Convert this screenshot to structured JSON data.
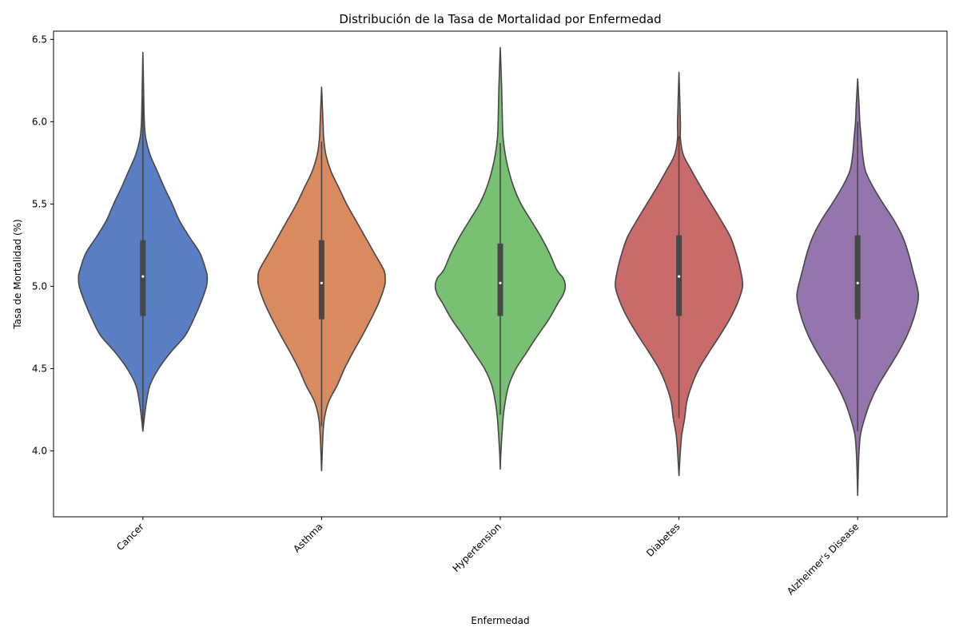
{
  "chart_data": {
    "type": "violin",
    "title": "Distribución de la Tasa de Mortalidad por Enfermedad",
    "xlabel": "Enfermedad",
    "ylabel": "Tasa de Mortalidad (%)",
    "ylim": [
      3.6,
      6.55
    ],
    "yticks": [
      "4.0",
      "4.5",
      "5.0",
      "5.5",
      "6.0",
      "6.5"
    ],
    "grid": false,
    "categories": [
      "Cancer",
      "Asthma",
      "Hypertension",
      "Diabetes",
      "Alzheimer's Disease"
    ],
    "series": [
      {
        "category": "Cancer",
        "color": "#5a7ec4",
        "min": 4.12,
        "max": 6.42,
        "q1": 4.82,
        "median": 5.06,
        "q3": 5.28,
        "whisker_low": 4.12,
        "whisker_high": 6.15,
        "profile": [
          [
            4.12,
            0.0
          ],
          [
            4.2,
            0.02
          ],
          [
            4.3,
            0.05
          ],
          [
            4.4,
            0.1
          ],
          [
            4.5,
            0.22
          ],
          [
            4.6,
            0.39
          ],
          [
            4.7,
            0.59
          ],
          [
            4.8,
            0.71
          ],
          [
            4.9,
            0.81
          ],
          [
            5.0,
            0.89
          ],
          [
            5.06,
            0.9
          ],
          [
            5.1,
            0.88
          ],
          [
            5.2,
            0.8
          ],
          [
            5.3,
            0.65
          ],
          [
            5.4,
            0.51
          ],
          [
            5.5,
            0.41
          ],
          [
            5.6,
            0.3
          ],
          [
            5.7,
            0.2
          ],
          [
            5.8,
            0.1
          ],
          [
            5.9,
            0.04
          ],
          [
            6.0,
            0.02
          ],
          [
            6.2,
            0.01
          ],
          [
            6.42,
            0.0
          ]
        ]
      },
      {
        "category": "Asthma",
        "color": "#d98a5e",
        "min": 3.88,
        "max": 6.21,
        "q1": 4.8,
        "median": 5.02,
        "q3": 5.28,
        "whisker_low": 4.15,
        "whisker_high": 5.88,
        "profile": [
          [
            3.88,
            0.0
          ],
          [
            4.0,
            0.01
          ],
          [
            4.1,
            0.02
          ],
          [
            4.2,
            0.04
          ],
          [
            4.3,
            0.1
          ],
          [
            4.4,
            0.22
          ],
          [
            4.5,
            0.32
          ],
          [
            4.6,
            0.44
          ],
          [
            4.7,
            0.57
          ],
          [
            4.8,
            0.69
          ],
          [
            4.9,
            0.8
          ],
          [
            5.0,
            0.88
          ],
          [
            5.05,
            0.89
          ],
          [
            5.1,
            0.87
          ],
          [
            5.2,
            0.74
          ],
          [
            5.3,
            0.61
          ],
          [
            5.4,
            0.48
          ],
          [
            5.5,
            0.35
          ],
          [
            5.6,
            0.24
          ],
          [
            5.7,
            0.13
          ],
          [
            5.8,
            0.06
          ],
          [
            5.9,
            0.03
          ],
          [
            6.0,
            0.02
          ],
          [
            6.21,
            0.0
          ]
        ]
      },
      {
        "category": "Hypertension",
        "color": "#78c172",
        "min": 3.89,
        "max": 6.45,
        "q1": 4.82,
        "median": 5.02,
        "q3": 5.26,
        "whisker_low": 4.22,
        "whisker_high": 5.87,
        "profile": [
          [
            3.89,
            0.0
          ],
          [
            4.0,
            0.01
          ],
          [
            4.2,
            0.04
          ],
          [
            4.3,
            0.07
          ],
          [
            4.4,
            0.12
          ],
          [
            4.5,
            0.22
          ],
          [
            4.6,
            0.37
          ],
          [
            4.7,
            0.52
          ],
          [
            4.8,
            0.68
          ],
          [
            4.9,
            0.81
          ],
          [
            4.95,
            0.88
          ],
          [
            5.0,
            0.91
          ],
          [
            5.05,
            0.88
          ],
          [
            5.1,
            0.79
          ],
          [
            5.2,
            0.69
          ],
          [
            5.3,
            0.57
          ],
          [
            5.4,
            0.43
          ],
          [
            5.5,
            0.29
          ],
          [
            5.6,
            0.19
          ],
          [
            5.7,
            0.12
          ],
          [
            5.8,
            0.07
          ],
          [
            5.9,
            0.04
          ],
          [
            6.0,
            0.03
          ],
          [
            6.2,
            0.02
          ],
          [
            6.45,
            0.0
          ]
        ]
      },
      {
        "category": "Diabetes",
        "color": "#c96b6b",
        "min": 3.85,
        "max": 6.3,
        "q1": 4.82,
        "median": 5.06,
        "q3": 5.31,
        "whisker_low": 4.2,
        "whisker_high": 5.91,
        "profile": [
          [
            3.85,
            0.0
          ],
          [
            4.0,
            0.02
          ],
          [
            4.1,
            0.04
          ],
          [
            4.2,
            0.08
          ],
          [
            4.3,
            0.11
          ],
          [
            4.4,
            0.18
          ],
          [
            4.5,
            0.28
          ],
          [
            4.6,
            0.42
          ],
          [
            4.7,
            0.57
          ],
          [
            4.8,
            0.71
          ],
          [
            4.9,
            0.82
          ],
          [
            5.0,
            0.89
          ],
          [
            5.1,
            0.86
          ],
          [
            5.2,
            0.8
          ],
          [
            5.3,
            0.72
          ],
          [
            5.4,
            0.59
          ],
          [
            5.5,
            0.45
          ],
          [
            5.6,
            0.31
          ],
          [
            5.7,
            0.18
          ],
          [
            5.8,
            0.06
          ],
          [
            5.9,
            0.02
          ],
          [
            6.0,
            0.02
          ],
          [
            6.3,
            0.0
          ]
        ]
      },
      {
        "category": "Alzheimer's Disease",
        "color": "#9475ad",
        "min": 3.73,
        "max": 6.26,
        "q1": 4.8,
        "median": 5.02,
        "q3": 5.31,
        "whisker_low": 4.12,
        "whisker_high": 6.0,
        "profile": [
          [
            3.73,
            0.0
          ],
          [
            3.9,
            0.01
          ],
          [
            4.0,
            0.02
          ],
          [
            4.1,
            0.04
          ],
          [
            4.2,
            0.1
          ],
          [
            4.3,
            0.18
          ],
          [
            4.4,
            0.29
          ],
          [
            4.5,
            0.43
          ],
          [
            4.6,
            0.57
          ],
          [
            4.7,
            0.69
          ],
          [
            4.8,
            0.78
          ],
          [
            4.9,
            0.84
          ],
          [
            4.95,
            0.85
          ],
          [
            5.0,
            0.83
          ],
          [
            5.1,
            0.77
          ],
          [
            5.2,
            0.71
          ],
          [
            5.3,
            0.63
          ],
          [
            5.4,
            0.51
          ],
          [
            5.5,
            0.36
          ],
          [
            5.6,
            0.22
          ],
          [
            5.7,
            0.11
          ],
          [
            5.8,
            0.07
          ],
          [
            5.9,
            0.05
          ],
          [
            6.0,
            0.03
          ],
          [
            6.1,
            0.02
          ],
          [
            6.26,
            0.0
          ]
        ]
      }
    ]
  }
}
